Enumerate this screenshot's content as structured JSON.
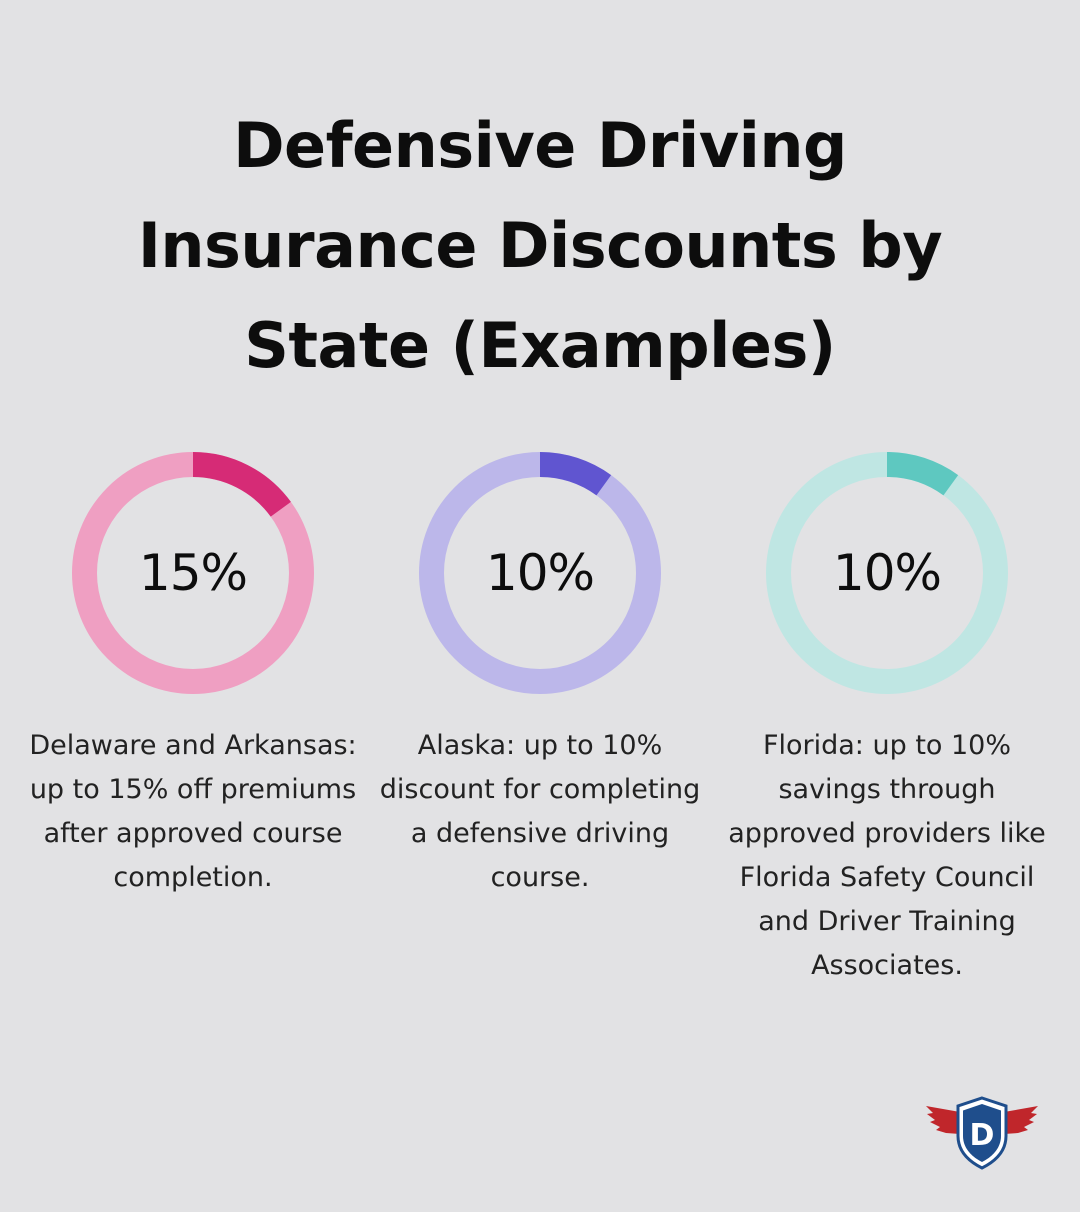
{
  "chart_data": [
    {
      "type": "pie",
      "subtype": "donut",
      "title": "Defensive Driving Insurance Discounts by State (Examples)",
      "value": 15,
      "max": 100,
      "label": "15%",
      "description": "Delaware and Arkansas: up to 15% off premiums after approved course completion.",
      "colors": {
        "accent": "#d62b76",
        "track": "#ef9fc2"
      }
    },
    {
      "type": "pie",
      "subtype": "donut",
      "value": 10,
      "max": 100,
      "label": "10%",
      "description": "Alaska: up to 10% discount for completing a defensive driving course.",
      "colors": {
        "accent": "#6055d0",
        "track": "#bcb7ea"
      }
    },
    {
      "type": "pie",
      "subtype": "donut",
      "value": 10,
      "max": 100,
      "label": "10%",
      "description": "Florida: up to 10% savings through approved providers like Florida Safety Council and Driver Training Associates.",
      "colors": {
        "accent": "#5ec8c0",
        "track": "#bfe6e3"
      }
    }
  ],
  "header": {
    "title": "Defensive Driving Insurance Discounts by State (Examples)"
  },
  "logo": {
    "icon": "shield-wings-logo",
    "letter": "D",
    "colors": {
      "shield": "#1f4e8c",
      "wings": "#c0262b",
      "letter": "#ffffff"
    }
  }
}
